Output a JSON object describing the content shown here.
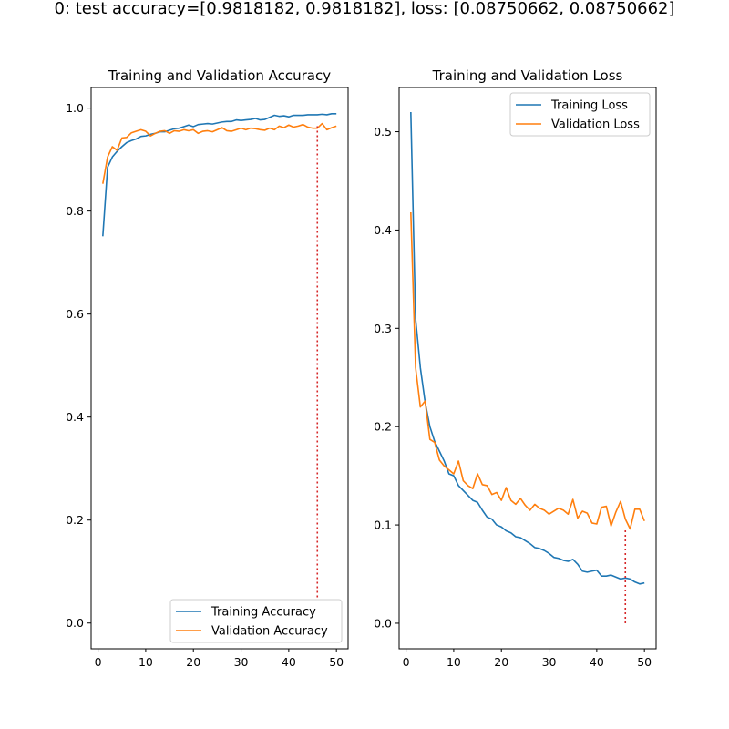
{
  "suptitle": "0: test accuracy=[0.9818182, 0.9818182], loss: [0.08750662, 0.08750662]",
  "colors": {
    "training": "#1f77b4",
    "validation": "#ff7f0e",
    "marker": "#d62728"
  },
  "chart_data": [
    {
      "type": "line",
      "title": "Training and Validation Accuracy",
      "xlabel": "",
      "ylabel": "",
      "xlim": [
        -1.45,
        52.45
      ],
      "ylim": [
        -0.05,
        1.04
      ],
      "xticks": [
        0,
        10,
        20,
        30,
        40,
        50
      ],
      "yticks": [
        0.0,
        0.2,
        0.4,
        0.6,
        0.8,
        1.0
      ],
      "ytick_labels": [
        "0.0",
        "0.2",
        "0.4",
        "0.6",
        "0.8",
        "1.0"
      ],
      "legend_position": "lower-right",
      "grid": false,
      "x": [
        1,
        2,
        3,
        4,
        5,
        6,
        7,
        8,
        9,
        10,
        11,
        12,
        13,
        14,
        15,
        16,
        17,
        18,
        19,
        20,
        21,
        22,
        23,
        24,
        25,
        26,
        27,
        28,
        29,
        30,
        31,
        32,
        33,
        34,
        35,
        36,
        37,
        38,
        39,
        40,
        41,
        42,
        43,
        44,
        45,
        46,
        47,
        48,
        49,
        50
      ],
      "series": [
        {
          "name": "Training Accuracy",
          "color": "#1f77b4",
          "values": [
            0.751,
            0.885,
            0.905,
            0.916,
            0.925,
            0.933,
            0.937,
            0.94,
            0.945,
            0.946,
            0.949,
            0.951,
            0.954,
            0.954,
            0.957,
            0.96,
            0.961,
            0.964,
            0.967,
            0.964,
            0.968,
            0.969,
            0.97,
            0.969,
            0.971,
            0.973,
            0.974,
            0.974,
            0.977,
            0.976,
            0.977,
            0.978,
            0.98,
            0.977,
            0.978,
            0.982,
            0.986,
            0.984,
            0.985,
            0.983,
            0.986,
            0.986,
            0.986,
            0.987,
            0.987,
            0.987,
            0.988,
            0.987,
            0.989,
            0.989
          ]
        },
        {
          "name": "Validation Accuracy",
          "color": "#ff7f0e",
          "values": [
            0.853,
            0.905,
            0.925,
            0.918,
            0.942,
            0.943,
            0.952,
            0.955,
            0.958,
            0.955,
            0.946,
            0.951,
            0.955,
            0.956,
            0.951,
            0.956,
            0.955,
            0.958,
            0.956,
            0.958,
            0.951,
            0.955,
            0.956,
            0.954,
            0.958,
            0.962,
            0.956,
            0.955,
            0.958,
            0.961,
            0.958,
            0.961,
            0.96,
            0.958,
            0.957,
            0.961,
            0.958,
            0.965,
            0.962,
            0.967,
            0.963,
            0.965,
            0.968,
            0.963,
            0.961,
            0.961,
            0.97,
            0.958,
            0.962,
            0.965
          ]
        }
      ],
      "vline": {
        "x": 46,
        "y_from": 0.05,
        "y_to": 0.97
      }
    },
    {
      "type": "line",
      "title": "Training and Validation Loss",
      "xlabel": "",
      "ylabel": "",
      "xlim": [
        -1.45,
        52.45
      ],
      "ylim": [
        -0.026,
        0.545
      ],
      "xticks": [
        0,
        10,
        20,
        30,
        40,
        50
      ],
      "yticks": [
        0.0,
        0.1,
        0.2,
        0.3,
        0.4,
        0.5
      ],
      "ytick_labels": [
        "0.0",
        "0.1",
        "0.2",
        "0.3",
        "0.4",
        "0.5"
      ],
      "legend_position": "upper-right",
      "grid": false,
      "x": [
        1,
        2,
        3,
        4,
        5,
        6,
        7,
        8,
        9,
        10,
        11,
        12,
        13,
        14,
        15,
        16,
        17,
        18,
        19,
        20,
        21,
        22,
        23,
        24,
        25,
        26,
        27,
        28,
        29,
        30,
        31,
        32,
        33,
        34,
        35,
        36,
        37,
        38,
        39,
        40,
        41,
        42,
        43,
        44,
        45,
        46,
        47,
        48,
        49,
        50
      ],
      "series": [
        {
          "name": "Training Loss",
          "color": "#1f77b4",
          "values": [
            0.52,
            0.31,
            0.26,
            0.225,
            0.2,
            0.185,
            0.175,
            0.165,
            0.152,
            0.15,
            0.14,
            0.135,
            0.13,
            0.125,
            0.123,
            0.115,
            0.108,
            0.106,
            0.1,
            0.098,
            0.094,
            0.092,
            0.088,
            0.087,
            0.084,
            0.081,
            0.077,
            0.076,
            0.074,
            0.071,
            0.067,
            0.066,
            0.064,
            0.063,
            0.065,
            0.06,
            0.053,
            0.052,
            0.053,
            0.054,
            0.048,
            0.048,
            0.049,
            0.047,
            0.045,
            0.046,
            0.045,
            0.042,
            0.04,
            0.041
          ]
        },
        {
          "name": "Validation Loss",
          "color": "#ff7f0e",
          "values": [
            0.418,
            0.26,
            0.22,
            0.226,
            0.187,
            0.184,
            0.166,
            0.16,
            0.156,
            0.152,
            0.165,
            0.145,
            0.14,
            0.137,
            0.152,
            0.141,
            0.14,
            0.131,
            0.133,
            0.125,
            0.138,
            0.125,
            0.121,
            0.127,
            0.12,
            0.115,
            0.121,
            0.117,
            0.115,
            0.111,
            0.114,
            0.117,
            0.115,
            0.111,
            0.126,
            0.107,
            0.114,
            0.112,
            0.102,
            0.101,
            0.118,
            0.119,
            0.099,
            0.113,
            0.124,
            0.106,
            0.096,
            0.116,
            0.116,
            0.104
          ]
        }
      ],
      "vline": {
        "x": 46,
        "y_from": 0.0,
        "y_to": 0.095
      }
    }
  ]
}
